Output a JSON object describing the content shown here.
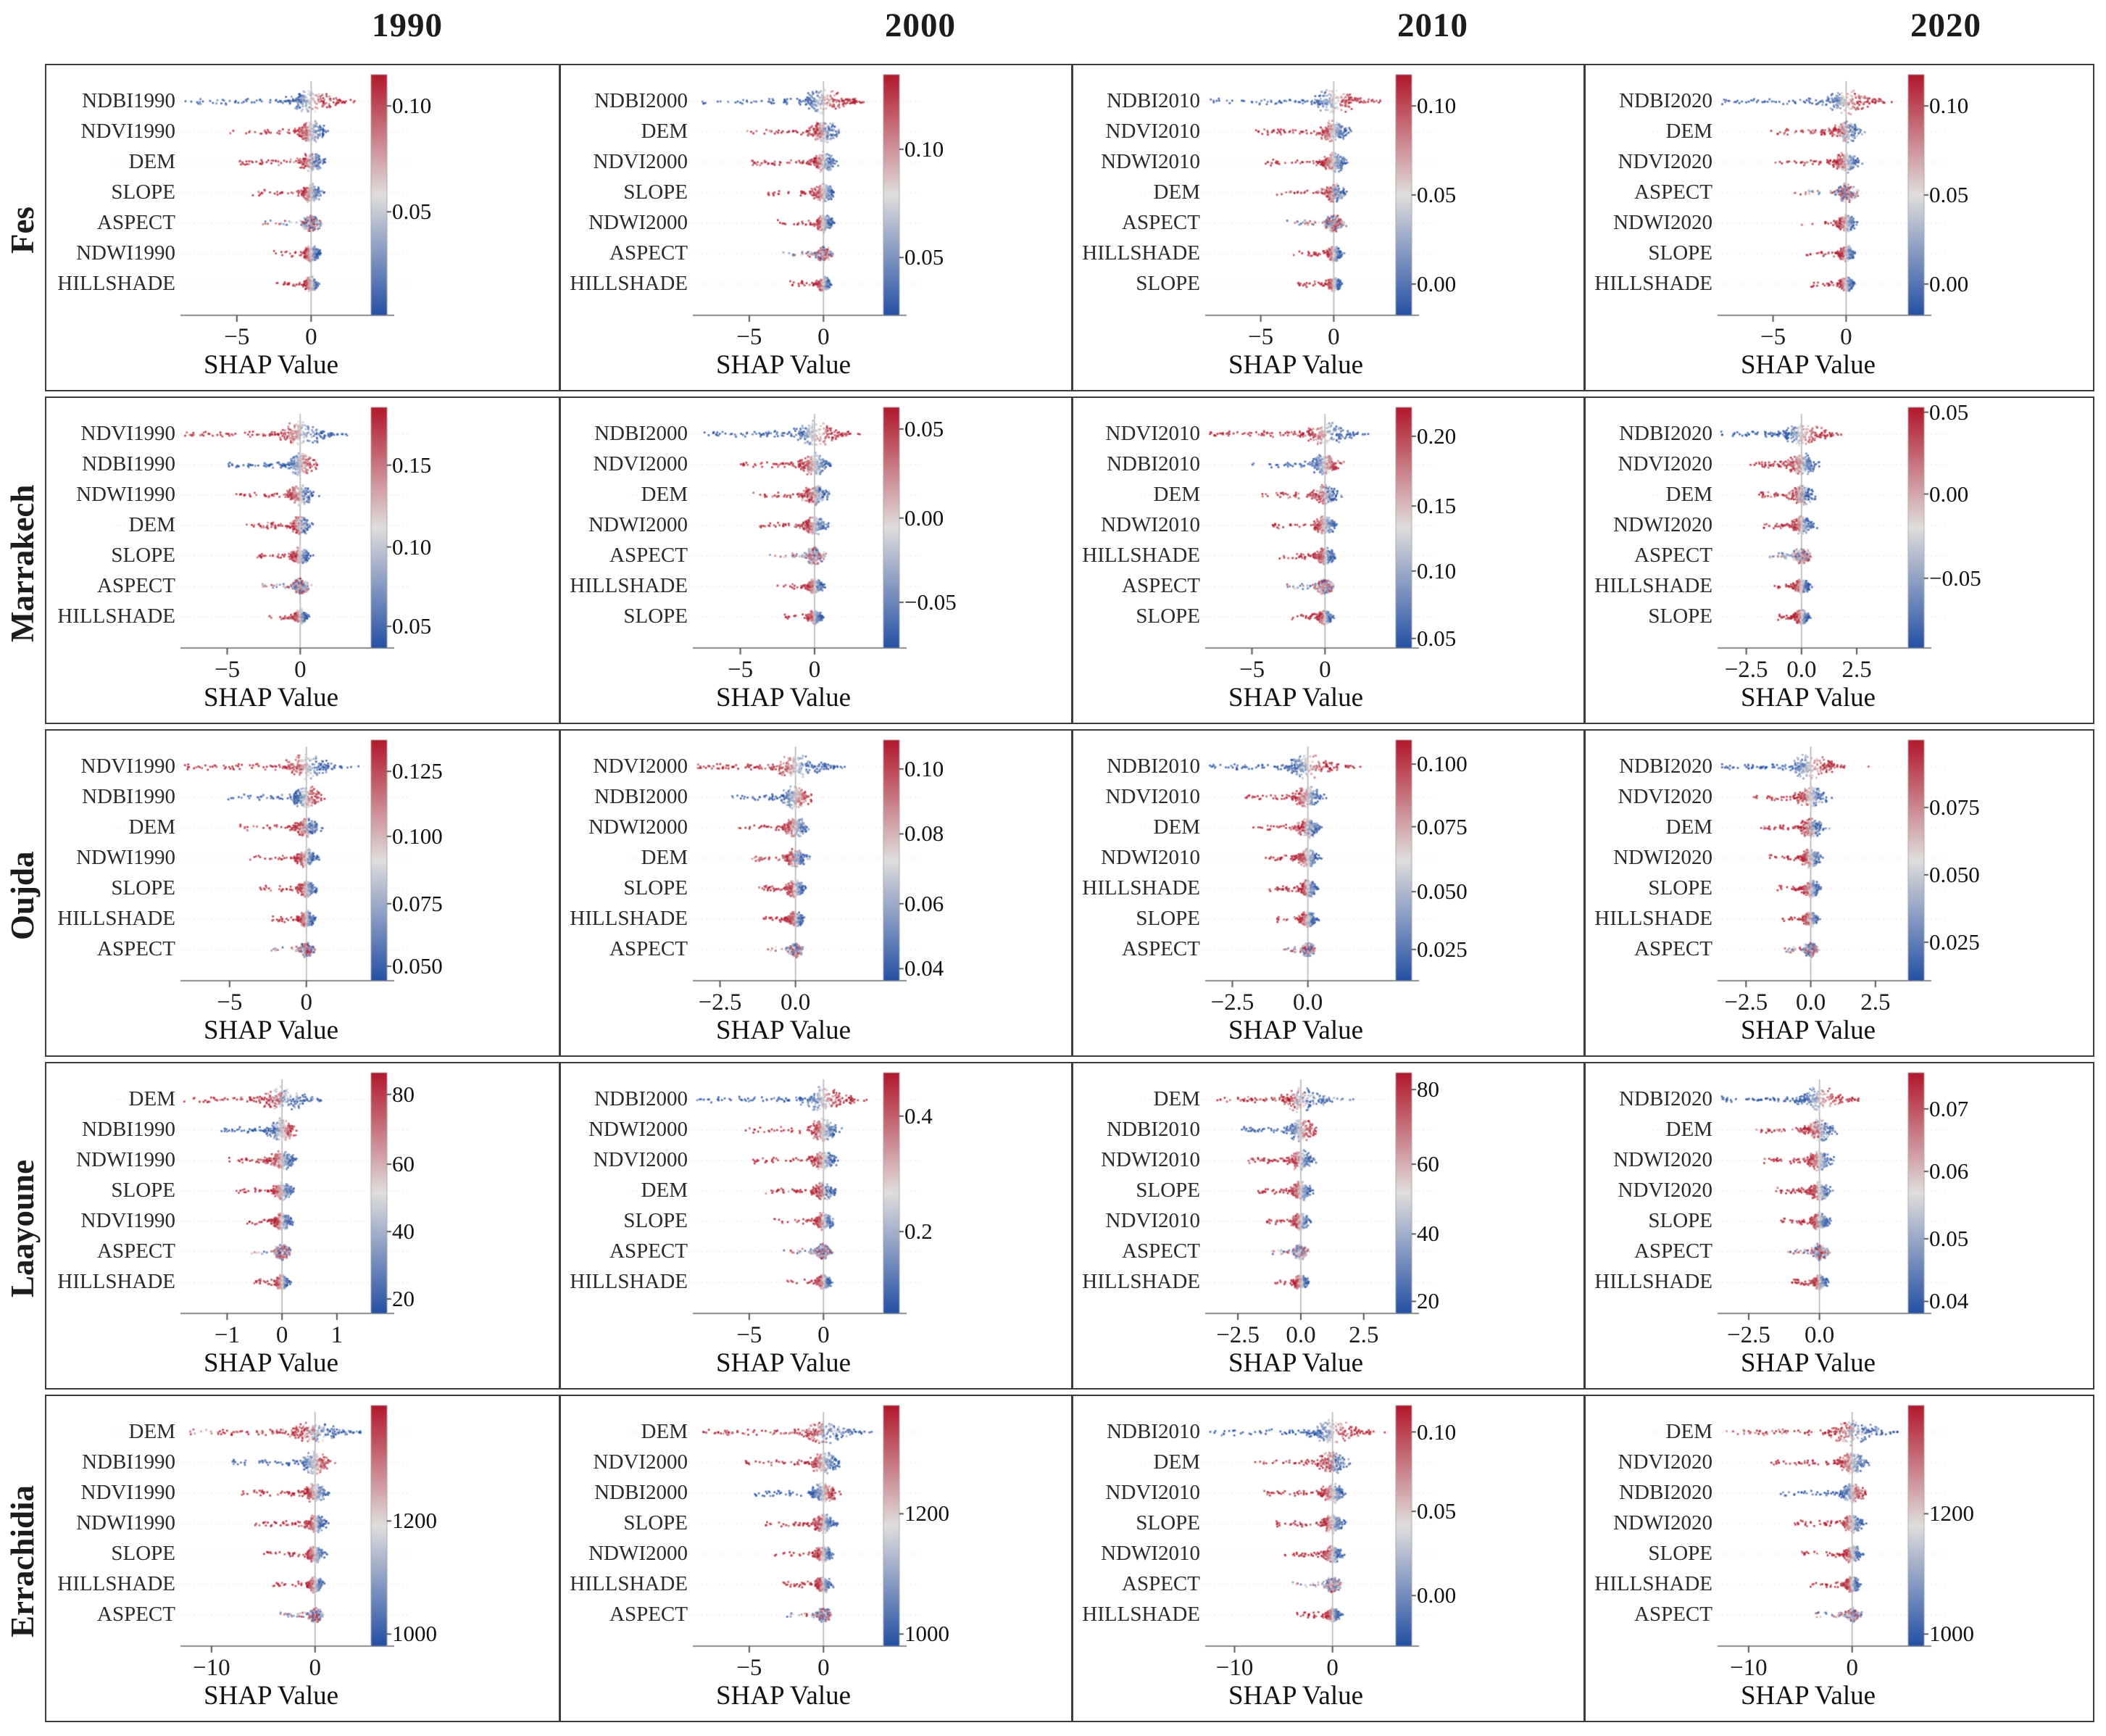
{
  "figure": {
    "column_headers": [
      "1990",
      "2000",
      "2010",
      "2020"
    ],
    "row_headers": [
      "Fes",
      "Marrakech",
      "Oujda",
      "Laayoune",
      "Errachidia"
    ],
    "x_axis_label": "SHAP Value",
    "colors": {
      "colormap_low_blue": "#2450a4",
      "colormap_mid": "#e0dedd",
      "colormap_high_red": "#b2182b",
      "zero_line": "#b5b5b5",
      "axis_line": "#8a8a8a",
      "grid_border": "#3c3c3c",
      "text": "#1c1c1c"
    }
  },
  "chart_data": {
    "type": "beeswarm",
    "description": "SHAP summary (beeswarm) plots per region (rows) and year (columns); each dot is a sample, x = SHAP value, color = feature value (blue low, red high per colorbar).",
    "x_axis_label": "SHAP Value",
    "color_trend": {
      "NDBI": 1,
      "NDVI": -1,
      "NDWI": -1,
      "SLOPE": -1,
      "HILLSHADE": -1,
      "ASPECT": 0,
      "DEM": -1
    },
    "cells": [
      {
        "region": "Fes",
        "year": "1990",
        "features": [
          "NDBI1990",
          "NDVI1990",
          "DEM",
          "SLOPE",
          "ASPECT",
          "NDWI1990",
          "HILLSHADE"
        ],
        "x_tick_labels": [
          "−5",
          "0"
        ],
        "x_tick_values": [
          -5,
          0
        ],
        "x_domain": [
          -8.8,
          3.4
        ],
        "colorbar_labels": [
          "0.10",
          "0.05"
        ],
        "colorbar_pos": [
          0.13,
          0.57
        ]
      },
      {
        "region": "Fes",
        "year": "2000",
        "features": [
          "NDBI2000",
          "DEM",
          "NDVI2000",
          "SLOPE",
          "NDWI2000",
          "ASPECT",
          "HILLSHADE"
        ],
        "x_tick_labels": [
          "−5",
          "0"
        ],
        "x_tick_values": [
          -5,
          0
        ],
        "x_domain": [
          -8.8,
          3.4
        ],
        "colorbar_labels": [
          "0.10",
          "0.05"
        ],
        "colorbar_pos": [
          0.31,
          0.76
        ]
      },
      {
        "region": "Fes",
        "year": "2010",
        "features": [
          "NDBI2010",
          "NDVI2010",
          "NDWI2010",
          "DEM",
          "ASPECT",
          "HILLSHADE",
          "SLOPE"
        ],
        "x_tick_labels": [
          "−5",
          "0"
        ],
        "x_tick_values": [
          -5,
          0
        ],
        "x_domain": [
          -8.8,
          3.6
        ],
        "colorbar_labels": [
          "0.10",
          "0.05",
          "0.00"
        ],
        "colorbar_pos": [
          0.13,
          0.5,
          0.87
        ]
      },
      {
        "region": "Fes",
        "year": "2020",
        "features": [
          "NDBI2020",
          "DEM",
          "NDVI2020",
          "ASPECT",
          "NDWI2020",
          "SLOPE",
          "HILLSHADE"
        ],
        "x_tick_labels": [
          "−5",
          "0"
        ],
        "x_tick_values": [
          -5,
          0
        ],
        "x_domain": [
          -8.8,
          3.6
        ],
        "colorbar_labels": [
          "0.10",
          "0.05",
          "0.00"
        ],
        "colorbar_pos": [
          0.13,
          0.5,
          0.87
        ]
      },
      {
        "region": "Marrakech",
        "year": "1990",
        "features": [
          "NDVI1990",
          "NDBI1990",
          "NDWI1990",
          "DEM",
          "SLOPE",
          "ASPECT",
          "HILLSHADE"
        ],
        "x_tick_labels": [
          "−5",
          "0"
        ],
        "x_tick_values": [
          -5,
          0
        ],
        "x_domain": [
          -8.2,
          4.2
        ],
        "colorbar_labels": [
          "0.15",
          "0.10",
          "0.05"
        ],
        "colorbar_pos": [
          0.24,
          0.58,
          0.91
        ]
      },
      {
        "region": "Marrakech",
        "year": "2000",
        "features": [
          "NDBI2000",
          "NDVI2000",
          "DEM",
          "NDWI2000",
          "ASPECT",
          "HILLSHADE",
          "SLOPE"
        ],
        "x_tick_labels": [
          "−5",
          "0"
        ],
        "x_tick_values": [
          -5,
          0
        ],
        "x_domain": [
          -8.2,
          4.0
        ],
        "colorbar_labels": [
          "0.05",
          "0.00",
          "−0.05"
        ],
        "colorbar_pos": [
          0.09,
          0.46,
          0.81
        ]
      },
      {
        "region": "Marrakech",
        "year": "2010",
        "features": [
          "NDVI2010",
          "NDBI2010",
          "DEM",
          "NDWI2010",
          "HILLSHADE",
          "ASPECT",
          "SLOPE"
        ],
        "x_tick_labels": [
          "−5",
          "0"
        ],
        "x_tick_values": [
          -5,
          0
        ],
        "x_domain": [
          -8.2,
          4.2
        ],
        "colorbar_labels": [
          "0.20",
          "0.15",
          "0.10",
          "0.05"
        ],
        "colorbar_pos": [
          0.12,
          0.41,
          0.68,
          0.96
        ]
      },
      {
        "region": "Marrakech",
        "year": "2020",
        "features": [
          "NDBI2020",
          "NDVI2020",
          "DEM",
          "NDWI2020",
          "ASPECT",
          "HILLSHADE",
          "SLOPE"
        ],
        "x_tick_labels": [
          "−2.5",
          "0.0",
          "2.5"
        ],
        "x_tick_values": [
          -2.5,
          0,
          2.5
        ],
        "x_domain": [
          -3.8,
          4.4
        ],
        "colorbar_labels": [
          "0.05",
          "0.00",
          "−0.05"
        ],
        "colorbar_pos": [
          0.02,
          0.36,
          0.71
        ]
      },
      {
        "region": "Oujda",
        "year": "1990",
        "features": [
          "NDVI1990",
          "NDBI1990",
          "DEM",
          "NDWI1990",
          "SLOPE",
          "HILLSHADE",
          "ASPECT"
        ],
        "x_tick_labels": [
          "−5",
          "0"
        ],
        "x_tick_values": [
          -5,
          0
        ],
        "x_domain": [
          -8.2,
          3.6
        ],
        "colorbar_labels": [
          "0.125",
          "0.100",
          "0.075",
          "0.050"
        ],
        "colorbar_pos": [
          0.13,
          0.4,
          0.68,
          0.94
        ]
      },
      {
        "region": "Oujda",
        "year": "2000",
        "features": [
          "NDVI2000",
          "NDBI2000",
          "NDWI2000",
          "DEM",
          "SLOPE",
          "HILLSHADE",
          "ASPECT"
        ],
        "x_tick_labels": [
          "−2.5",
          "0.0"
        ],
        "x_tick_values": [
          -2.5,
          0
        ],
        "x_domain": [
          -3.4,
          2.6
        ],
        "colorbar_labels": [
          "0.10",
          "0.08",
          "0.06",
          "0.04"
        ],
        "colorbar_pos": [
          0.12,
          0.39,
          0.68,
          0.95
        ]
      },
      {
        "region": "Oujda",
        "year": "2010",
        "features": [
          "NDBI2010",
          "NDVI2010",
          "DEM",
          "NDWI2010",
          "HILLSHADE",
          "SLOPE",
          "ASPECT"
        ],
        "x_tick_labels": [
          "−2.5",
          "0.0"
        ],
        "x_tick_values": [
          -2.5,
          0
        ],
        "x_domain": [
          -3.4,
          2.6
        ],
        "colorbar_labels": [
          "0.100",
          "0.075",
          "0.050",
          "0.025"
        ],
        "colorbar_pos": [
          0.1,
          0.36,
          0.63,
          0.87
        ]
      },
      {
        "region": "Oujda",
        "year": "2020",
        "features": [
          "NDBI2020",
          "NDVI2020",
          "DEM",
          "NDWI2020",
          "SLOPE",
          "HILLSHADE",
          "ASPECT"
        ],
        "x_tick_labels": [
          "−2.5",
          "0.0",
          "2.5"
        ],
        "x_tick_values": [
          -2.5,
          0,
          2.5
        ],
        "x_domain": [
          -3.6,
          3.4
        ],
        "colorbar_labels": [
          "0.075",
          "0.050",
          "0.025"
        ],
        "colorbar_pos": [
          0.28,
          0.56,
          0.84
        ]
      },
      {
        "region": "Laayoune",
        "year": "1990",
        "features": [
          "DEM",
          "NDBI1990",
          "NDWI1990",
          "SLOPE",
          "NDVI1990",
          "ASPECT",
          "HILLSHADE"
        ],
        "x_tick_labels": [
          "−1",
          "0",
          "1"
        ],
        "x_tick_values": [
          -1,
          0,
          1
        ],
        "x_domain": [
          -1.85,
          1.45
        ],
        "colorbar_labels": [
          "80",
          "60",
          "40",
          "20"
        ],
        "colorbar_pos": [
          0.09,
          0.38,
          0.66,
          0.94
        ]
      },
      {
        "region": "Laayoune",
        "year": "2000",
        "features": [
          "NDBI2000",
          "NDWI2000",
          "NDVI2000",
          "DEM",
          "SLOPE",
          "ASPECT",
          "HILLSHADE"
        ],
        "x_tick_labels": [
          "−5",
          "0"
        ],
        "x_tick_values": [
          -5,
          0
        ],
        "x_domain": [
          -8.8,
          3.4
        ],
        "colorbar_labels": [
          "0.4",
          "0.2"
        ],
        "colorbar_pos": [
          0.18,
          0.66
        ]
      },
      {
        "region": "Laayoune",
        "year": "2010",
        "features": [
          "DEM",
          "NDBI2010",
          "NDWI2010",
          "SLOPE",
          "NDVI2010",
          "ASPECT",
          "HILLSHADE"
        ],
        "x_tick_labels": [
          "−2.5",
          "0.0",
          "2.5"
        ],
        "x_tick_values": [
          -2.5,
          0,
          2.5
        ],
        "x_domain": [
          -3.8,
          3.4
        ],
        "colorbar_labels": [
          "80",
          "60",
          "40",
          "20"
        ],
        "colorbar_pos": [
          0.07,
          0.38,
          0.67,
          0.95
        ]
      },
      {
        "region": "Laayoune",
        "year": "2020",
        "features": [
          "NDBI2020",
          "DEM",
          "NDWI2020",
          "NDVI2020",
          "SLOPE",
          "ASPECT",
          "HILLSHADE"
        ],
        "x_tick_labels": [
          "−2.5",
          "0.0"
        ],
        "x_tick_values": [
          -2.5,
          0
        ],
        "x_domain": [
          -3.6,
          2.8
        ],
        "colorbar_labels": [
          "0.07",
          "0.06",
          "0.05",
          "0.04"
        ],
        "colorbar_pos": [
          0.15,
          0.41,
          0.69,
          0.95
        ]
      },
      {
        "region": "Errachidia",
        "year": "1990",
        "features": [
          "DEM",
          "NDBI1990",
          "NDVI1990",
          "NDWI1990",
          "SLOPE",
          "HILLSHADE",
          "ASPECT"
        ],
        "x_tick_labels": [
          "−10",
          "0"
        ],
        "x_tick_values": [
          -10,
          0
        ],
        "x_domain": [
          -13,
          4.5
        ],
        "colorbar_labels": [
          "1200",
          "1000"
        ],
        "colorbar_pos": [
          0.48,
          0.95
        ]
      },
      {
        "region": "Errachidia",
        "year": "2000",
        "features": [
          "DEM",
          "NDVI2000",
          "NDBI2000",
          "SLOPE",
          "NDWI2000",
          "HILLSHADE",
          "ASPECT"
        ],
        "x_tick_labels": [
          "−5",
          "0"
        ],
        "x_tick_values": [
          -5,
          0
        ],
        "x_domain": [
          -8.8,
          3.4
        ],
        "colorbar_labels": [
          "1200",
          "1000"
        ],
        "colorbar_pos": [
          0.45,
          0.95
        ]
      },
      {
        "region": "Errachidia",
        "year": "2010",
        "features": [
          "NDBI2010",
          "DEM",
          "NDVI2010",
          "SLOPE",
          "NDWI2010",
          "ASPECT",
          "HILLSHADE"
        ],
        "x_tick_labels": [
          "−10",
          "0"
        ],
        "x_tick_values": [
          -10,
          0
        ],
        "x_domain": [
          -13,
          5.5
        ],
        "colorbar_labels": [
          "0.10",
          "0.05",
          "0.00"
        ],
        "colorbar_pos": [
          0.11,
          0.44,
          0.79
        ]
      },
      {
        "region": "Errachidia",
        "year": "2020",
        "features": [
          "DEM",
          "NDVI2020",
          "NDBI2020",
          "NDWI2020",
          "SLOPE",
          "HILLSHADE",
          "ASPECT"
        ],
        "x_tick_labels": [
          "−10",
          "0"
        ],
        "x_tick_values": [
          -10,
          0
        ],
        "x_domain": [
          -13,
          4.5
        ],
        "colorbar_labels": [
          "1200",
          "1000"
        ],
        "colorbar_pos": [
          0.45,
          0.95
        ]
      }
    ]
  }
}
